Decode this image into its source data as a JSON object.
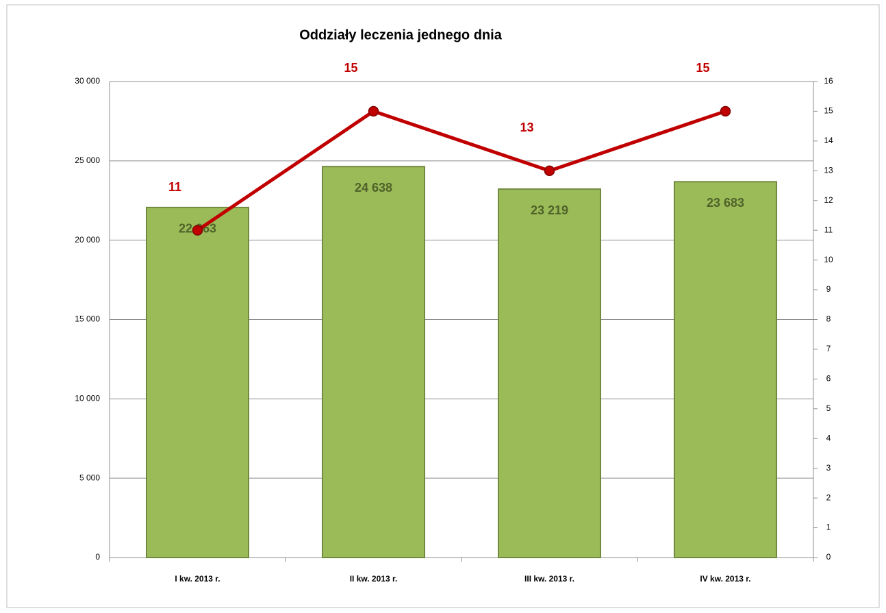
{
  "chart_data": {
    "type": "bar-line",
    "title": "Oddziały leczenia jednego dnia",
    "categories": [
      "I kw. 2013 r.",
      "II kw. 2013 r.",
      "III kw. 2013 r.",
      "IV kw. 2013 r."
    ],
    "series": [
      {
        "type": "bar",
        "color": "#9bbb59",
        "values": [
          22063,
          24638,
          23219,
          23683
        ],
        "value_labels": [
          "22 063",
          "24 638",
          "23 219",
          "23 683"
        ]
      },
      {
        "type": "line",
        "axis": "y2",
        "color": "#c00000",
        "values": [
          11,
          15,
          13,
          15
        ]
      }
    ],
    "ylim": [
      0,
      30000
    ],
    "yticks": [
      {
        "value": 0,
        "label": "0"
      },
      {
        "value": 5000,
        "label": "5 000"
      },
      {
        "value": 10000,
        "label": "10 000"
      },
      {
        "value": 15000,
        "label": "15 000"
      },
      {
        "value": 20000,
        "label": "20 000"
      },
      {
        "value": 25000,
        "label": "25 000"
      },
      {
        "value": 30000,
        "label": "30 000"
      }
    ],
    "y2lim": [
      0,
      16
    ],
    "y2ticks": [
      0,
      1,
      2,
      3,
      4,
      5,
      6,
      7,
      8,
      9,
      10,
      11,
      12,
      13,
      14,
      15,
      16
    ],
    "grid": true
  }
}
